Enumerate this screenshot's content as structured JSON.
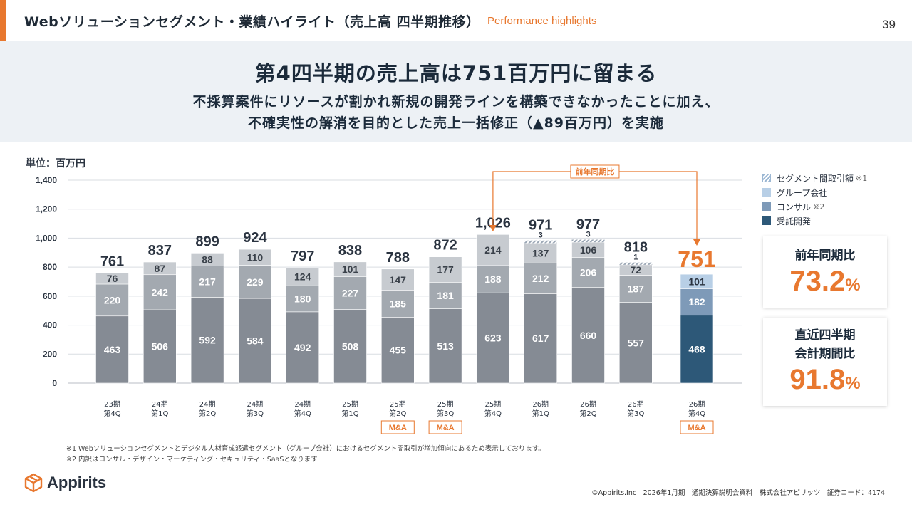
{
  "header": {
    "title": "Webソリューションセグメント・業績ハイライト（売上高 四半期推移）",
    "subtitle": "Performance highlights",
    "page_number": "39"
  },
  "banner": {
    "headline": "第4四半期の売上高は751百万円に留まる",
    "line1": "不採算案件にリソースが割かれ新規の開発ラインを構築できなかったことに加え、",
    "line2": "不確実性の解消を目的とした売上一括修正（▲89百万円）を実施"
  },
  "unit_label": "単位：百万円",
  "legend": [
    {
      "label": "セグメント間取引額",
      "note": "※1",
      "swatch": "hatch"
    },
    {
      "label": "グループ会社",
      "note": "",
      "swatch": "group"
    },
    {
      "label": "コンサル",
      "note": "※2",
      "swatch": "consul"
    },
    {
      "label": "受託開発",
      "note": "",
      "swatch": "itaku"
    }
  ],
  "colors": {
    "itaku_past": "#858b94",
    "consul_past": "#a3a9b0",
    "group_past": "#c7cbd0",
    "itaku_current": "#2d5878",
    "consul_current": "#7e9ab8",
    "group_current": "#b8cfe6",
    "accent": "#e8782f",
    "grid": "#d9dde2"
  },
  "chart_data": {
    "type": "bar",
    "stacked": true,
    "ylim": [
      0,
      1400
    ],
    "yticks": [
      "0",
      "200",
      "400",
      "600",
      "800",
      "1,000",
      "1,200",
      "1,400"
    ],
    "categories": [
      [
        "23期",
        "第4Q"
      ],
      [
        "24期",
        "第1Q"
      ],
      [
        "24期",
        "第2Q"
      ],
      [
        "24期",
        "第3Q"
      ],
      [
        "24期",
        "第4Q"
      ],
      [
        "25期",
        "第1Q"
      ],
      [
        "25期",
        "第2Q"
      ],
      [
        "25期",
        "第3Q"
      ],
      [
        "25期",
        "第4Q"
      ],
      [
        "26期",
        "第1Q"
      ],
      [
        "26期",
        "第2Q"
      ],
      [
        "26期",
        "第3Q"
      ],
      [
        "26期",
        "第4Q"
      ]
    ],
    "series": [
      {
        "name": "受託開発",
        "values": [
          463,
          506,
          592,
          584,
          492,
          508,
          455,
          513,
          623,
          617,
          660,
          557,
          468
        ]
      },
      {
        "name": "コンサル",
        "values": [
          220,
          242,
          217,
          229,
          180,
          227,
          185,
          181,
          188,
          212,
          206,
          187,
          182
        ]
      },
      {
        "name": "グループ会社",
        "values": [
          76,
          87,
          88,
          110,
          124,
          101,
          147,
          177,
          214,
          137,
          106,
          72,
          101
        ]
      },
      {
        "name": "セグメント間取引額",
        "values": [
          0,
          0,
          0,
          0,
          0,
          0,
          0,
          0,
          0,
          3,
          3,
          1,
          0
        ]
      }
    ],
    "totals": [
      "761",
      "837",
      "899",
      "924",
      "797",
      "838",
      "788",
      "872",
      "1,026",
      "971",
      "977",
      "818",
      "751"
    ],
    "inter_segment_labels": [
      "",
      "",
      "",
      "",
      "",
      "",
      "",
      "",
      "",
      "3",
      "3",
      "1",
      ""
    ],
    "ma_badges": [
      "",
      "",
      "",
      "",
      "",
      "",
      "M&A",
      "M&A",
      "",
      "",
      "",
      "",
      "M&A"
    ],
    "highlight_index": 12,
    "comparison_label": "前年同期比",
    "comparison_from_index": 8,
    "comparison_to_index": 12
  },
  "kpis": [
    {
      "label": "前年同期比",
      "value": "73.2",
      "unit": "%"
    },
    {
      "label_line1": "直近四半期",
      "label_line2": "会計期間比",
      "value": "91.8",
      "unit": "%"
    }
  ],
  "footnotes": [
    "※1 Webソリューションセグメントとデジタル人材育成派遣セグメント（グループ会社）におけるセグメント間取引が増加傾向にあるため表示しております。",
    "※2 内訳はコンサル・デザイン・マーケティング・セキュリティ・SaaSとなります"
  ],
  "logo_text": "Appirits",
  "footer_right": "©Appirits.Inc　2026年1月期　通期決算説明会資料　株式会社アピリッツ　証券コード：4174"
}
